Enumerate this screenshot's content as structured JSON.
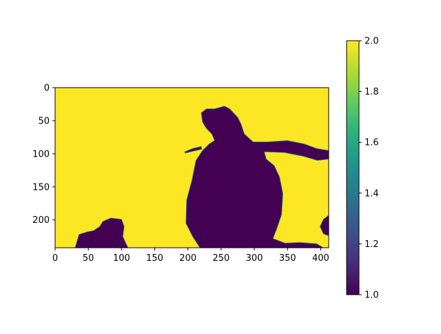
{
  "chart_data": {
    "type": "heatmap",
    "title": "",
    "xlabel": "",
    "ylabel": "",
    "image_shape": [
      242,
      412
    ],
    "xlim": [
      0,
      412
    ],
    "ylim": [
      242,
      0
    ],
    "x_ticks": [
      0,
      50,
      100,
      150,
      200,
      250,
      300,
      350,
      400
    ],
    "y_ticks": [
      0,
      50,
      100,
      150,
      200
    ],
    "grid": false,
    "colormap": "viridis",
    "colorbar": {
      "range": [
        1.0,
        2.0
      ],
      "ticks": [
        "1.0",
        "1.2",
        "1.4",
        "1.6",
        "1.8",
        "2.0"
      ]
    },
    "values_present": [
      1,
      2
    ],
    "background_value": 2,
    "background_color": "#fde725",
    "region_value": 1,
    "region_color": "#440154",
    "regions": [
      {
        "label": "large central blob",
        "value": 1,
        "outline": [
          [
            218,
            242
          ],
          [
            207,
            225
          ],
          [
            197,
            205
          ],
          [
            198,
            170
          ],
          [
            206,
            140
          ],
          [
            212,
            110
          ],
          [
            222,
            95
          ],
          [
            232,
            85
          ],
          [
            240,
            80
          ],
          [
            236,
            70
          ],
          [
            228,
            62
          ],
          [
            222,
            52
          ],
          [
            220,
            38
          ],
          [
            228,
            32
          ],
          [
            240,
            32
          ],
          [
            255,
            28
          ],
          [
            263,
            32
          ],
          [
            275,
            45
          ],
          [
            280,
            55
          ],
          [
            285,
            70
          ],
          [
            298,
            82
          ],
          [
            320,
            82
          ],
          [
            350,
            80
          ],
          [
            375,
            85
          ],
          [
            394,
            92
          ],
          [
            412,
            95
          ],
          [
            412,
            108
          ],
          [
            395,
            110
          ],
          [
            375,
            104
          ],
          [
            345,
            98
          ],
          [
            315,
            97
          ],
          [
            318,
            108
          ],
          [
            330,
            118
          ],
          [
            338,
            135
          ],
          [
            343,
            160
          ],
          [
            341,
            192
          ],
          [
            334,
            213
          ],
          [
            328,
            228
          ],
          [
            346,
            235
          ],
          [
            368,
            234
          ],
          [
            394,
            236
          ],
          [
            404,
            242
          ]
        ]
      },
      {
        "label": "left lower blob",
        "value": 1,
        "outline": [
          [
            30,
            242
          ],
          [
            33,
            232
          ],
          [
            36,
            222
          ],
          [
            48,
            218
          ],
          [
            58,
            216
          ],
          [
            67,
            210
          ],
          [
            72,
            202
          ],
          [
            84,
            197
          ],
          [
            100,
            199
          ],
          [
            104,
            210
          ],
          [
            102,
            225
          ],
          [
            106,
            234
          ],
          [
            110,
            242
          ]
        ]
      },
      {
        "label": "right edge blob",
        "value": 1,
        "outline": [
          [
            412,
            193
          ],
          [
            404,
            199
          ],
          [
            399,
            210
          ],
          [
            404,
            221
          ],
          [
            412,
            224
          ]
        ]
      },
      {
        "label": "thin streak",
        "value": 1,
        "outline": [
          [
            195,
            97
          ],
          [
            207,
            92
          ],
          [
            220,
            89
          ],
          [
            221,
            93
          ],
          [
            208,
            96
          ],
          [
            196,
            99
          ]
        ]
      }
    ]
  }
}
